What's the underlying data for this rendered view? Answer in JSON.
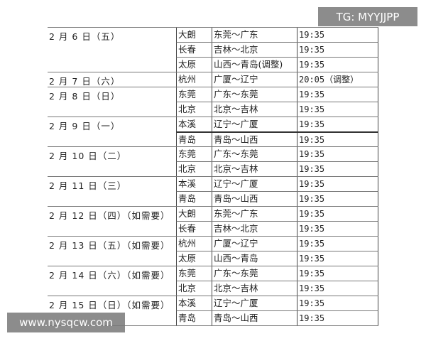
{
  "watermarks": {
    "top_right": "TG: MYYJJPP",
    "bottom_left": "www.nysqcw.com"
  },
  "schedule": [
    {
      "date": "2 月 6 日（五）",
      "games": [
        {
          "city": "大朗",
          "match": "东莞～广东",
          "time": "19:35"
        },
        {
          "city": "长春",
          "match": "吉林～北京",
          "time": "19:35"
        },
        {
          "city": "太原",
          "match": "山西～青岛(调整)",
          "time": "19:35"
        }
      ]
    },
    {
      "date": "2 月 7 日（六）",
      "games": [
        {
          "city": "杭州",
          "match": "广厦～辽宁",
          "time": "20:05（调整）"
        }
      ]
    },
    {
      "date": "2 月 8 日（日）",
      "games": [
        {
          "city": "东莞",
          "match": "广东～东莞",
          "time": "19:35"
        },
        {
          "city": "北京",
          "match": "北京～吉林",
          "time": "19:35"
        }
      ]
    },
    {
      "date": "2 月 9 日（一）",
      "games": [
        {
          "city": "本溪",
          "match": "辽宁～广厦",
          "time": "19:35"
        },
        {
          "city": "青岛",
          "match": "青岛～山西",
          "time": "19:35"
        }
      ]
    },
    {
      "date": "2 月 10 日（二）",
      "games": [
        {
          "city": "东莞",
          "match": "广东～东莞",
          "time": "19:35"
        },
        {
          "city": "北京",
          "match": "北京～吉林",
          "time": "19:35"
        }
      ]
    },
    {
      "date": "2 月 11 日（三）",
      "games": [
        {
          "city": "本溪",
          "match": "辽宁～广厦",
          "time": "19:35"
        },
        {
          "city": "青岛",
          "match": "青岛～山西",
          "time": "19:35"
        }
      ]
    },
    {
      "date": "2 月 12 日（四）（如需要）",
      "games": [
        {
          "city": "大朗",
          "match": "东莞～广东",
          "time": "19:35"
        },
        {
          "city": "长春",
          "match": "吉林～北京",
          "time": "19:35"
        }
      ]
    },
    {
      "date": "2 月 13 日（五）（如需要）",
      "games": [
        {
          "city": "杭州",
          "match": "广厦～辽宁",
          "time": "19:35"
        },
        {
          "city": "太原",
          "match": "山西～青岛",
          "time": "19:35"
        }
      ]
    },
    {
      "date": "2 月 14 日（六）（如需要）",
      "games": [
        {
          "city": "东莞",
          "match": "广东～东莞",
          "time": "19:35"
        },
        {
          "city": "北京",
          "match": "北京～吉林",
          "time": "19:35"
        }
      ]
    },
    {
      "date": "2 月 15 日（日）（如需要）",
      "games": [
        {
          "city": "本溪",
          "match": "辽宁～广厦",
          "time": "19:35"
        },
        {
          "city": "青岛",
          "match": "青岛～山西",
          "time": "19:35"
        }
      ]
    }
  ]
}
